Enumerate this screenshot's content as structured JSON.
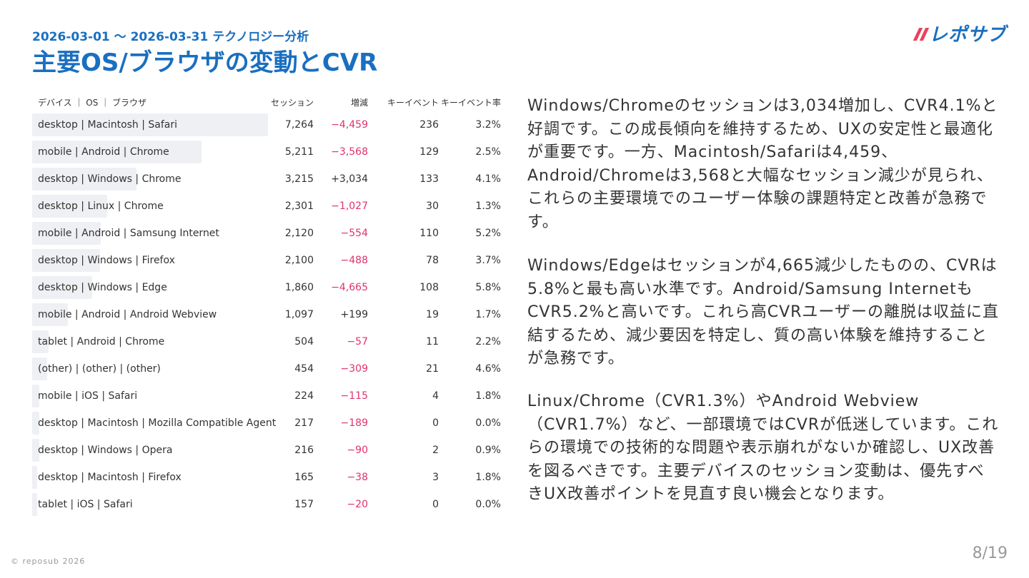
{
  "header": {
    "subtitle": "2026-03-01 ～ 2026-03-31 テクノロジー分析",
    "title": "主要OS/ブラウザの変動とCVR",
    "logo": "レポサブ"
  },
  "table": {
    "columns": [
      "デバイス ｜ OS ｜ ブラウザ",
      "セッション",
      "増減",
      "キーイベント",
      "キーイベント率"
    ],
    "rows": [
      [
        "desktop | Macintosh | Safari",
        "7,264",
        "−4,459",
        "236",
        "3.2%"
      ],
      [
        "mobile | Android | Chrome",
        "5,211",
        "−3,568",
        "129",
        "2.5%"
      ],
      [
        "desktop | Windows | Chrome",
        "3,215",
        "+3,034",
        "133",
        "4.1%"
      ],
      [
        "desktop | Linux | Chrome",
        "2,301",
        "−1,027",
        "30",
        "1.3%"
      ],
      [
        "mobile | Android | Samsung Internet",
        "2,120",
        "−554",
        "110",
        "5.2%"
      ],
      [
        "desktop | Windows | Firefox",
        "2,100",
        "−488",
        "78",
        "3.7%"
      ],
      [
        "desktop | Windows | Edge",
        "1,860",
        "−4,665",
        "108",
        "5.8%"
      ],
      [
        "mobile | Android | Android Webview",
        "1,097",
        "+199",
        "19",
        "1.7%"
      ],
      [
        "tablet | Android | Chrome",
        "504",
        "−57",
        "11",
        "2.2%"
      ],
      [
        "(other) | (other) | (other)",
        "454",
        "−309",
        "21",
        "4.6%"
      ],
      [
        "mobile | iOS | Safari",
        "224",
        "−115",
        "4",
        "1.8%"
      ],
      [
        "desktop | Macintosh | Mozilla Compatible Agent",
        "217",
        "−189",
        "0",
        "0.0%"
      ],
      [
        "desktop | Windows | Opera",
        "216",
        "−90",
        "2",
        "0.9%"
      ],
      [
        "desktop | Macintosh | Firefox",
        "165",
        "−38",
        "3",
        "1.8%"
      ],
      [
        "tablet | iOS | Safari",
        "157",
        "−20",
        "0",
        "0.0%"
      ]
    ]
  },
  "paragraphs": [
    "Windows/Chromeのセッションは3,034増加し、CVR4.1%と好調です。この成長傾向を維持するため、UXの安定性と最適化が重要です。一方、Macintosh/Safariは4,459、Android/Chromeは3,568と大幅なセッション減少が見られ、これらの主要環境でのユーザー体験の課題特定と改善が急務です。",
    "Windows/Edgeはセッションが4,665減少したものの、CVRは5.8%と最も高い水準です。Android/Samsung InternetもCVR5.2%と高いです。これら高CVRユーザーの離脱は収益に直結するため、減少要因を特定し、質の高い体験を維持することが急務です。",
    "Linux/Chrome（CVR1.3%）やAndroid Webview（CVR1.7%）など、一部環境ではCVRが低迷しています。これらの環境での技術的な問題や表示崩れがないか確認し、UX改善を図るべきです。主要デバイスのセッション変動は、優先すべきUX改善ポイントを見直す良い機会となります。"
  ],
  "footer": {
    "copyright": "© reposub 2026",
    "page": "8/19"
  }
}
